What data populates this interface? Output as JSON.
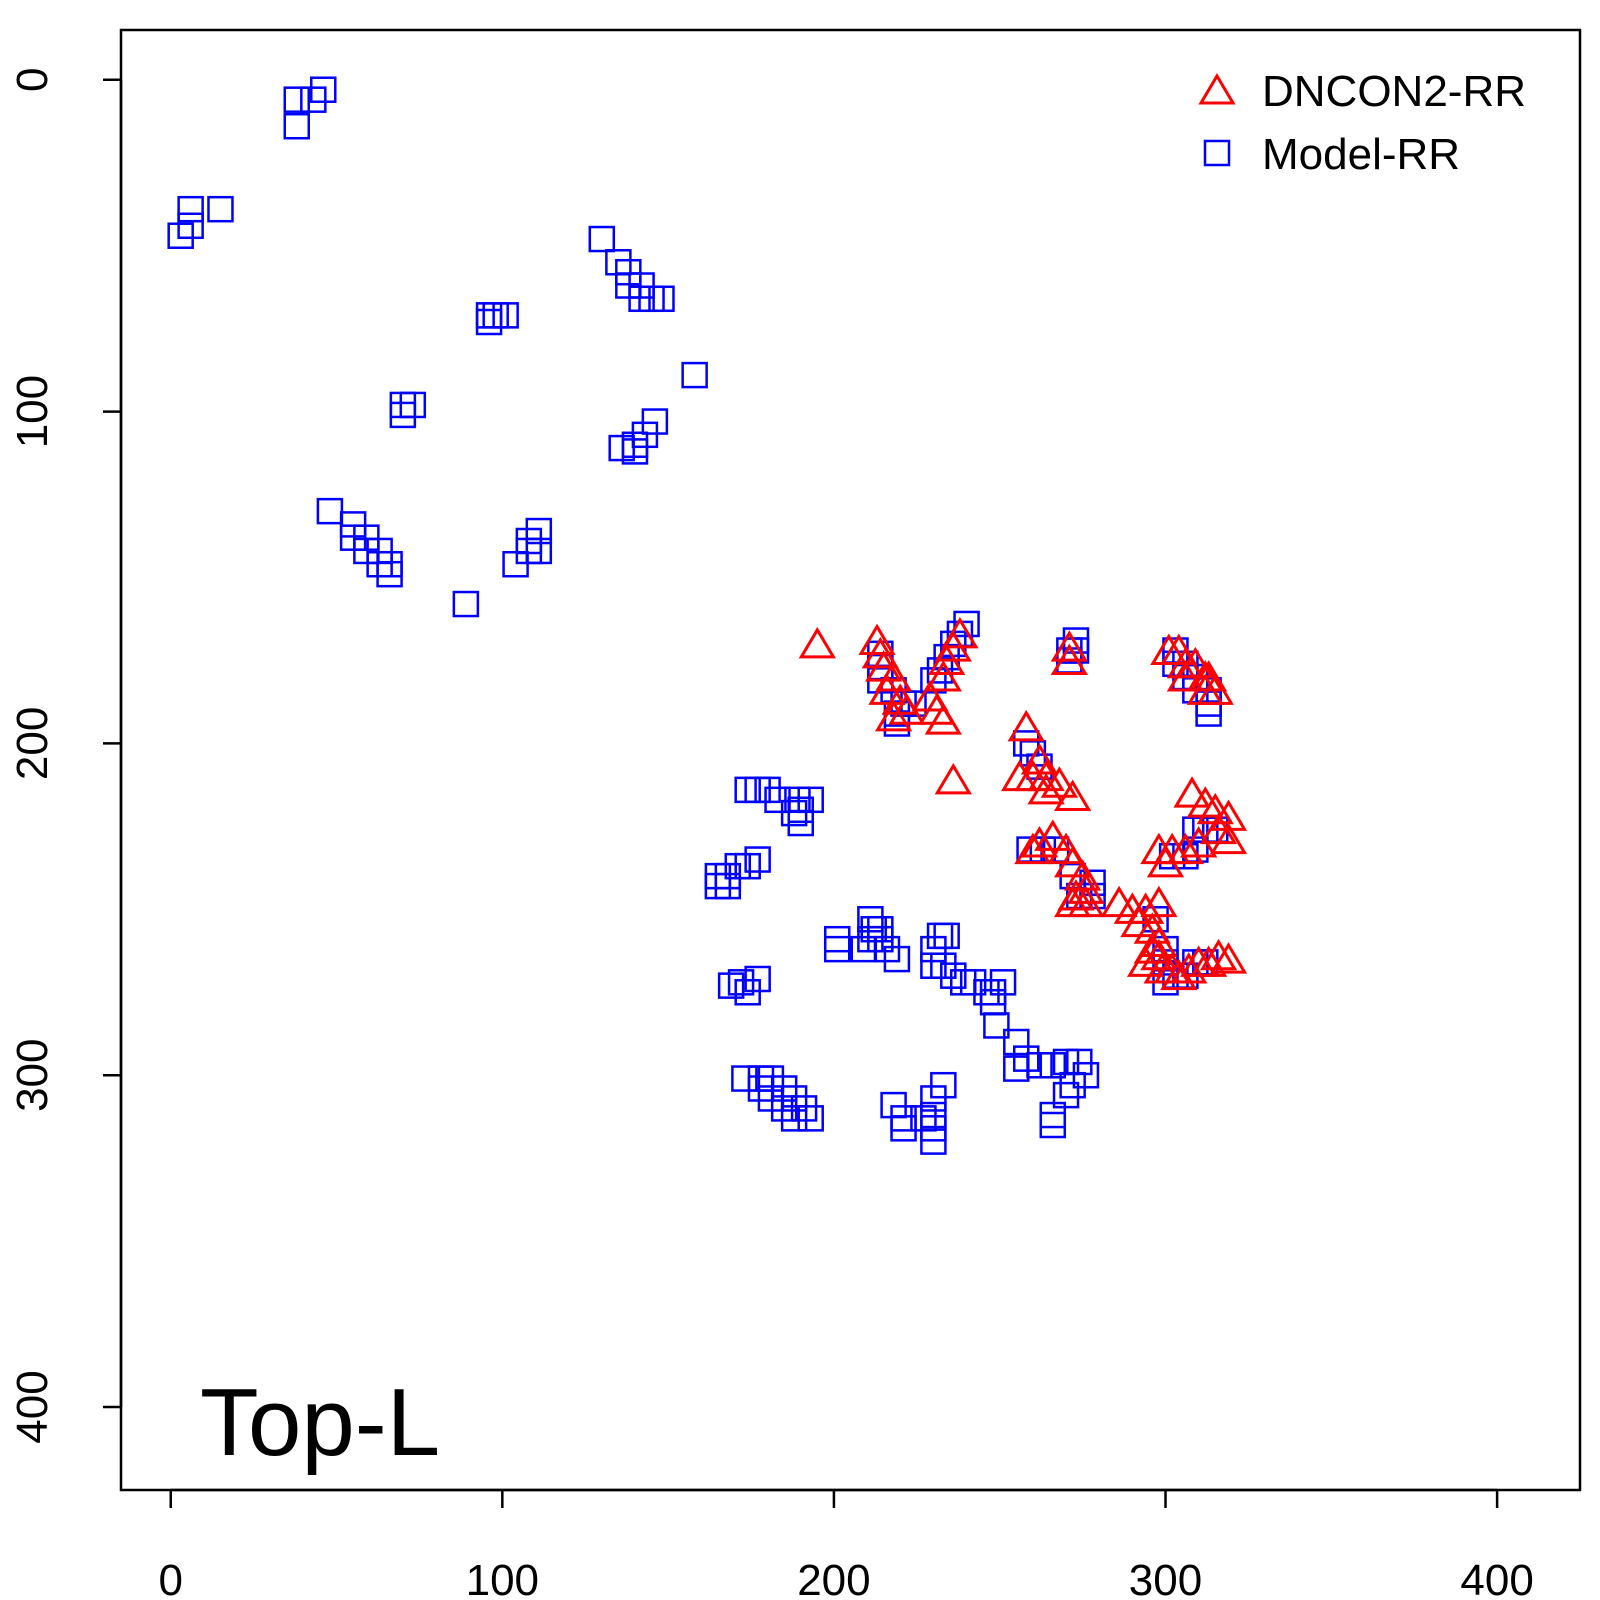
{
  "chart_data": {
    "type": "scatter",
    "title": "",
    "xlabel": "",
    "ylabel": "",
    "panel_label": "Top-L",
    "xlim": [
      -15,
      425
    ],
    "ylim": [
      425,
      -15
    ],
    "y_reversed": true,
    "grid": false,
    "legend_position": "top-right",
    "x_ticks": [
      0,
      100,
      200,
      300,
      400
    ],
    "y_ticks": [
      0,
      100,
      200,
      300,
      400
    ],
    "x_tick_labels": [
      "0",
      "100",
      "200",
      "300",
      "400"
    ],
    "y_tick_labels": [
      "0",
      "100",
      "200",
      "300",
      "400"
    ],
    "series": [
      {
        "name": "Model-RR",
        "marker": "square",
        "color": "#0000ff",
        "points": [
          [
            46,
            3
          ],
          [
            43,
            6
          ],
          [
            38,
            6
          ],
          [
            38,
            14
          ],
          [
            15,
            39
          ],
          [
            6,
            39
          ],
          [
            6,
            44
          ],
          [
            3,
            47
          ],
          [
            130,
            48
          ],
          [
            135,
            55
          ],
          [
            138,
            58
          ],
          [
            138,
            62
          ],
          [
            142,
            62
          ],
          [
            142,
            66
          ],
          [
            145,
            66
          ],
          [
            148,
            66
          ],
          [
            96,
            71
          ],
          [
            98,
            71
          ],
          [
            101,
            71
          ],
          [
            96,
            73
          ],
          [
            158,
            89
          ],
          [
            70,
            98
          ],
          [
            73,
            98
          ],
          [
            70,
            101
          ],
          [
            146,
            103
          ],
          [
            143,
            107
          ],
          [
            140,
            110
          ],
          [
            136,
            111
          ],
          [
            140,
            112
          ],
          [
            48,
            130
          ],
          [
            55,
            134
          ],
          [
            55,
            138
          ],
          [
            59,
            138
          ],
          [
            59,
            142
          ],
          [
            63,
            142
          ],
          [
            63,
            146
          ],
          [
            66,
            146
          ],
          [
            66,
            149
          ],
          [
            111,
            136
          ],
          [
            108,
            139
          ],
          [
            108,
            142
          ],
          [
            111,
            142
          ],
          [
            104,
            146
          ],
          [
            89,
            158
          ],
          [
            240,
            164
          ],
          [
            238,
            167
          ],
          [
            236,
            170
          ],
          [
            234,
            174
          ],
          [
            232,
            178
          ],
          [
            230,
            181
          ],
          [
            273,
            169
          ],
          [
            271,
            172
          ],
          [
            273,
            172
          ],
          [
            271,
            175
          ],
          [
            214,
            173
          ],
          [
            214,
            177
          ],
          [
            214,
            181
          ],
          [
            218,
            184
          ],
          [
            221,
            188
          ],
          [
            224,
            188
          ],
          [
            219,
            191
          ],
          [
            219,
            194
          ],
          [
            303,
            172
          ],
          [
            303,
            176
          ],
          [
            306,
            176
          ],
          [
            306,
            180
          ],
          [
            309,
            180
          ],
          [
            309,
            184
          ],
          [
            313,
            184
          ],
          [
            313,
            188
          ],
          [
            313,
            191
          ],
          [
            258,
            200
          ],
          [
            260,
            203
          ],
          [
            262,
            207
          ],
          [
            174,
            214
          ],
          [
            177,
            214
          ],
          [
            180,
            214
          ],
          [
            183,
            217
          ],
          [
            189,
            217
          ],
          [
            193,
            217
          ],
          [
            190,
            220
          ],
          [
            188,
            221
          ],
          [
            190,
            224
          ],
          [
            177,
            235
          ],
          [
            174,
            237
          ],
          [
            171,
            237
          ],
          [
            168,
            240
          ],
          [
            165,
            240
          ],
          [
            168,
            243
          ],
          [
            165,
            243
          ],
          [
            259,
            232
          ],
          [
            263,
            232
          ],
          [
            267,
            232
          ],
          [
            272,
            240
          ],
          [
            278,
            242
          ],
          [
            278,
            246
          ],
          [
            274,
            246
          ],
          [
            309,
            226
          ],
          [
            312,
            226
          ],
          [
            315,
            226
          ],
          [
            309,
            232
          ],
          [
            306,
            234
          ],
          [
            302,
            234
          ],
          [
            297,
            253
          ],
          [
            300,
            262
          ],
          [
            300,
            266
          ],
          [
            300,
            272
          ],
          [
            303,
            270
          ],
          [
            306,
            270
          ],
          [
            309,
            266
          ],
          [
            312,
            266
          ],
          [
            211,
            253
          ],
          [
            212,
            256
          ],
          [
            214,
            256
          ],
          [
            211,
            259
          ],
          [
            214,
            259
          ],
          [
            201,
            259
          ],
          [
            201,
            262
          ],
          [
            209,
            262
          ],
          [
            216,
            262
          ],
          [
            219,
            265
          ],
          [
            232,
            258
          ],
          [
            234,
            258
          ],
          [
            230,
            262
          ],
          [
            230,
            267
          ],
          [
            233,
            267
          ],
          [
            236,
            270
          ],
          [
            239,
            272
          ],
          [
            242,
            272
          ],
          [
            246,
            275
          ],
          [
            248,
            275
          ],
          [
            251,
            272
          ],
          [
            248,
            278
          ],
          [
            249,
            285
          ],
          [
            177,
            271
          ],
          [
            172,
            272
          ],
          [
            169,
            273
          ],
          [
            174,
            275
          ],
          [
            255,
            290
          ],
          [
            258,
            295
          ],
          [
            262,
            297
          ],
          [
            266,
            297
          ],
          [
            270,
            296
          ],
          [
            274,
            296
          ],
          [
            276,
            300
          ],
          [
            272,
            303
          ],
          [
            270,
            306
          ],
          [
            266,
            312
          ],
          [
            266,
            315
          ],
          [
            255,
            298
          ],
          [
            173,
            301
          ],
          [
            178,
            301
          ],
          [
            181,
            301
          ],
          [
            178,
            304
          ],
          [
            185,
            304
          ],
          [
            181,
            307
          ],
          [
            188,
            307
          ],
          [
            185,
            310
          ],
          [
            191,
            310
          ],
          [
            188,
            313
          ],
          [
            193,
            313
          ],
          [
            218,
            309
          ],
          [
            221,
            313
          ],
          [
            221,
            316
          ],
          [
            230,
            312
          ],
          [
            233,
            303
          ],
          [
            230,
            307
          ],
          [
            230,
            316
          ],
          [
            230,
            320
          ],
          [
            227,
            313
          ]
        ]
      },
      {
        "name": "DNCON2-RR",
        "marker": "triangle",
        "color": "#ff0000",
        "points": [
          [
            195,
            170
          ],
          [
            213,
            169
          ],
          [
            214,
            173
          ],
          [
            215,
            177
          ],
          [
            218,
            180
          ],
          [
            216,
            184
          ],
          [
            220,
            187
          ],
          [
            222,
            190
          ],
          [
            218,
            192
          ],
          [
            238,
            167
          ],
          [
            236,
            171
          ],
          [
            234,
            175
          ],
          [
            233,
            180
          ],
          [
            229,
            186
          ],
          [
            231,
            190
          ],
          [
            233,
            193
          ],
          [
            271,
            171
          ],
          [
            271,
            175
          ],
          [
            301,
            172
          ],
          [
            304,
            172
          ],
          [
            306,
            176
          ],
          [
            309,
            176
          ],
          [
            306,
            180
          ],
          [
            312,
            180
          ],
          [
            312,
            184
          ],
          [
            315,
            184
          ],
          [
            313,
            180
          ],
          [
            258,
            195
          ],
          [
            262,
            205
          ],
          [
            256,
            210
          ],
          [
            260,
            210
          ],
          [
            264,
            210
          ],
          [
            268,
            212
          ],
          [
            272,
            216
          ],
          [
            264,
            214
          ],
          [
            236,
            211
          ],
          [
            308,
            215
          ],
          [
            312,
            218
          ],
          [
            315,
            220
          ],
          [
            319,
            222
          ],
          [
            316,
            226
          ],
          [
            319,
            229
          ],
          [
            310,
            230
          ],
          [
            306,
            232
          ],
          [
            302,
            232
          ],
          [
            298,
            232
          ],
          [
            300,
            236
          ],
          [
            266,
            228
          ],
          [
            262,
            230
          ],
          [
            260,
            232
          ],
          [
            270,
            232
          ],
          [
            272,
            236
          ],
          [
            275,
            240
          ],
          [
            276,
            244
          ],
          [
            273,
            246
          ],
          [
            276,
            248
          ],
          [
            272,
            248
          ],
          [
            286,
            248
          ],
          [
            290,
            250
          ],
          [
            294,
            250
          ],
          [
            298,
            248
          ],
          [
            292,
            254
          ],
          [
            296,
            256
          ],
          [
            298,
            260
          ],
          [
            296,
            262
          ],
          [
            294,
            266
          ],
          [
            298,
            264
          ],
          [
            299,
            268
          ],
          [
            302,
            268
          ],
          [
            304,
            270
          ],
          [
            307,
            268
          ],
          [
            310,
            266
          ],
          [
            313,
            266
          ],
          [
            316,
            264
          ],
          [
            319,
            265
          ]
        ]
      }
    ]
  },
  "legend": {
    "items": [
      {
        "label": "DNCON2-RR",
        "marker": "triangle",
        "color": "#ff0000"
      },
      {
        "label": "Model-RR",
        "marker": "square",
        "color": "#0000ff"
      }
    ]
  }
}
